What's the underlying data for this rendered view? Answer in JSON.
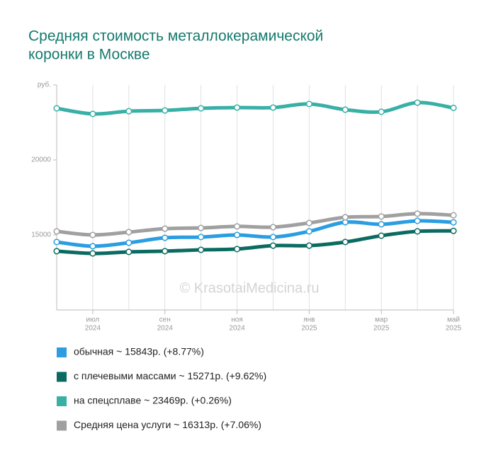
{
  "chart_data": {
    "type": "line",
    "title": [
      "Средняя стоимость металлокерамической",
      "коронки в Москве"
    ],
    "watermark": "© KrasotaiMedicina.ru",
    "categories": [
      null,
      "июл",
      null,
      "сен",
      null,
      "ноя",
      null,
      "янв",
      null,
      "мар",
      null,
      "май"
    ],
    "category_years": [
      null,
      "2024",
      null,
      "2024",
      null,
      "2024",
      null,
      "2025",
      null,
      "2025",
      null,
      "2025"
    ],
    "ylim": [
      10000,
      25000
    ],
    "yticks": [
      {
        "value": 25000,
        "label": "руб."
      },
      20000,
      15000
    ],
    "grid": true,
    "series": [
      {
        "name": "обычная ~ 15843р. (+8.77%)",
        "color": "#2b9de0",
        "values": [
          14530,
          14250,
          14480,
          14810,
          14860,
          15000,
          14860,
          15240,
          15850,
          15710,
          15940,
          15843
        ]
      },
      {
        "name": "с плечевыми массами ~ 15271р. (+9.62%)",
        "color": "#0b6b61",
        "values": [
          13920,
          13770,
          13870,
          13920,
          14010,
          14060,
          14290,
          14290,
          14530,
          14950,
          15240,
          15271
        ]
      },
      {
        "name": "на спецсплаве ~ 23469р. (+0.26%)",
        "color": "#38b0a6",
        "values": [
          23440,
          23070,
          23250,
          23300,
          23440,
          23490,
          23490,
          23730,
          23350,
          23210,
          23820,
          23469
        ]
      },
      {
        "name": "Средняя цена услуги ~ 16313р. (+7.06%)",
        "color": "#a0a0a0",
        "values": [
          15240,
          15000,
          15190,
          15420,
          15470,
          15570,
          15520,
          15800,
          16180,
          16230,
          16420,
          16313
        ]
      }
    ]
  }
}
